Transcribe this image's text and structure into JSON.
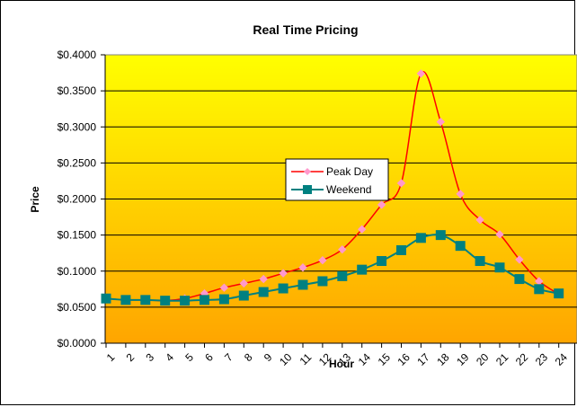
{
  "chart_data": {
    "type": "line",
    "title": "Real Time Pricing",
    "xlabel": "Hour",
    "ylabel": "Price",
    "categories": [
      "1",
      "2",
      "3",
      "4",
      "5",
      "6",
      "7",
      "8",
      "9",
      "10",
      "11",
      "12",
      "13",
      "14",
      "15",
      "16",
      "17",
      "18",
      "19",
      "20",
      "21",
      "22",
      "23",
      "24"
    ],
    "ylim": [
      0,
      0.4
    ],
    "yticks": [
      "$0.0000",
      "$0.0500",
      "$0.1000",
      "$0.1500",
      "$0.2000",
      "$0.2500",
      "$0.3000",
      "$0.3500",
      "$0.4000"
    ],
    "grid": true,
    "legend_position": "center",
    "series": [
      {
        "name": "Peak Day",
        "color": "#ff0000",
        "marker": "diamond",
        "marker_color": "#ff99cc",
        "values": [
          0.062,
          0.06,
          0.06,
          0.059,
          0.062,
          0.069,
          0.077,
          0.083,
          0.089,
          0.097,
          0.105,
          0.115,
          0.13,
          0.158,
          0.192,
          0.222,
          0.374,
          0.307,
          0.207,
          0.171,
          0.151,
          0.116,
          0.086,
          0.068
        ]
      },
      {
        "name": "Weekend",
        "color": "#008080",
        "marker": "square",
        "marker_color": "#008080",
        "values": [
          0.062,
          0.06,
          0.06,
          0.059,
          0.059,
          0.06,
          0.061,
          0.066,
          0.071,
          0.076,
          0.081,
          0.086,
          0.093,
          0.102,
          0.114,
          0.129,
          0.146,
          0.15,
          0.135,
          0.114,
          0.105,
          0.089,
          0.075,
          0.069
        ]
      }
    ]
  }
}
